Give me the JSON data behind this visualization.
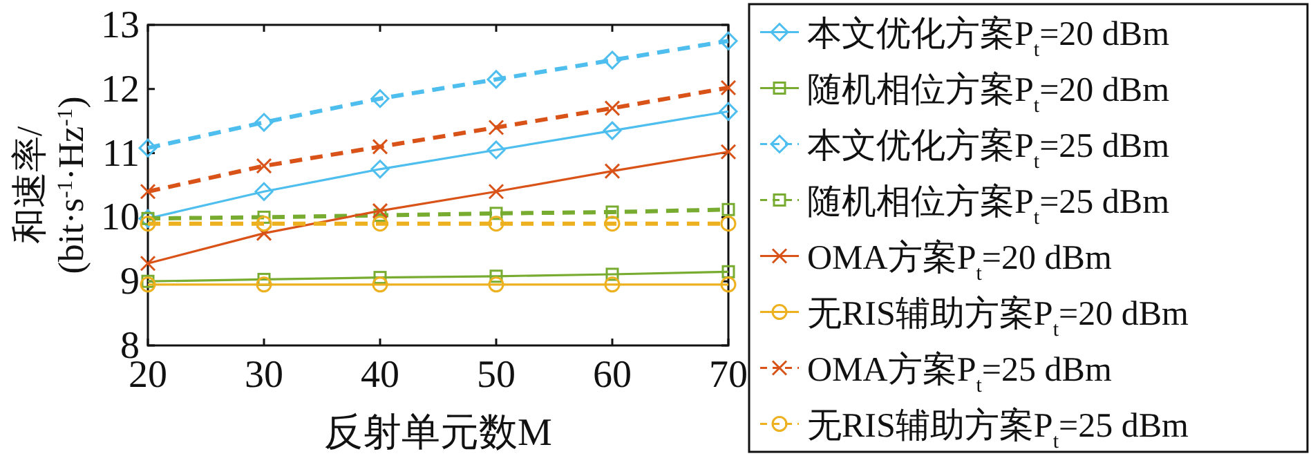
{
  "chart_data": {
    "type": "line",
    "xlabel": "反射单元数M",
    "ylabel": "和速率/(bit·s$^{-1}$·Hz$^{-1}$)",
    "x": [
      20,
      30,
      40,
      50,
      60,
      70
    ],
    "xlim": [
      20,
      70
    ],
    "xticks": [
      20,
      30,
      40,
      50,
      60,
      70
    ],
    "ylim": [
      8,
      13
    ],
    "yticks": [
      8,
      9,
      10,
      11,
      12,
      13
    ],
    "legend": "right",
    "series": [
      {
        "name": "本文优化方案P$_{t}$=20 dBm",
        "color": "#4dbeee",
        "marker": "diamond",
        "line_style": "solid",
        "values": [
          9.98,
          10.4,
          10.75,
          11.05,
          11.35,
          11.65
        ]
      },
      {
        "name": "随机相位方案P$_{t}$=20 dBm",
        "color": "#77ac30",
        "marker": "square",
        "line_style": "solid",
        "values": [
          9.0,
          9.03,
          9.06,
          9.08,
          9.11,
          9.15
        ]
      },
      {
        "name": "本文优化方案P$_{t}$=25 dBm",
        "color": "#4dbeee",
        "marker": "diamond",
        "line_style": "dashed",
        "values": [
          11.08,
          11.48,
          11.85,
          12.15,
          12.45,
          12.75
        ]
      },
      {
        "name": "随机相位方案P$_{t}$=25 dBm",
        "color": "#77ac30",
        "marker": "square",
        "line_style": "dashed",
        "values": [
          9.98,
          10.0,
          10.03,
          10.06,
          10.08,
          10.12
        ]
      },
      {
        "name": "OMA方案P$_{t}$=20 dBm",
        "color": "#d95319",
        "marker": "cross",
        "line_style": "solid",
        "values": [
          9.28,
          9.75,
          10.1,
          10.4,
          10.72,
          11.02
        ]
      },
      {
        "name": "无RIS辅助方案P$_{t}$=20 dBm",
        "color": "#edb120",
        "marker": "circle",
        "line_style": "solid",
        "values": [
          8.95,
          8.95,
          8.95,
          8.95,
          8.95,
          8.95
        ]
      },
      {
        "name": "OMA方案P$_{t}$=25 dBm",
        "color": "#d95319",
        "marker": "cross",
        "line_style": "dashed",
        "values": [
          10.4,
          10.8,
          11.1,
          11.4,
          11.7,
          12.02
        ]
      },
      {
        "name": "无RIS辅助方案P$_{t}$=25 dBm",
        "color": "#edb120",
        "marker": "circle",
        "line_style": "dashed",
        "values": [
          9.9,
          9.9,
          9.9,
          9.9,
          9.9,
          9.9
        ]
      }
    ]
  }
}
